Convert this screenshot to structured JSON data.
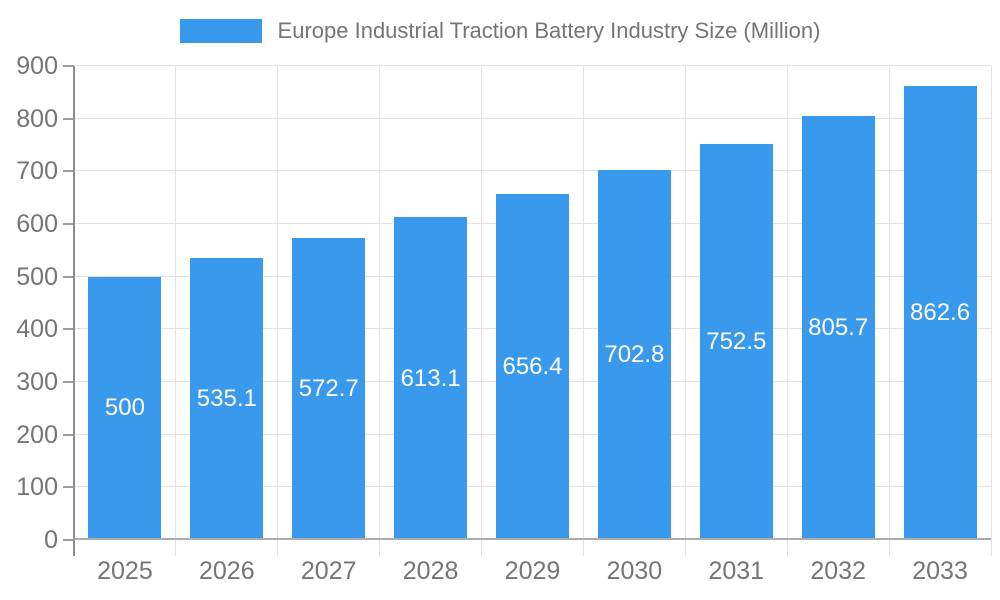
{
  "chart_data": {
    "type": "bar",
    "title": "Europe Industrial Traction Battery Industry Size (Million)",
    "legend": {
      "position": "top",
      "entries": [
        "Europe Industrial Traction Battery Industry Size (Million)"
      ]
    },
    "categories": [
      "2025",
      "2026",
      "2027",
      "2028",
      "2029",
      "2030",
      "2031",
      "2032",
      "2033"
    ],
    "values": [
      500,
      535.1,
      572.7,
      613.1,
      656.4,
      702.8,
      752.5,
      805.7,
      862.6
    ],
    "xlabel": "",
    "ylabel": "",
    "ylim": [
      0,
      900
    ],
    "ytick_interval": 100,
    "yticks": [
      0,
      100,
      200,
      300,
      400,
      500,
      600,
      700,
      800,
      900
    ],
    "grid": true,
    "value_label_position": "inside-center",
    "colors": {
      "bar": "#3999EC",
      "value_label": "#FFFFFF",
      "axis_line": "#8C8C8C",
      "baseline": "#ABABAB",
      "tick": "#9E9E9E",
      "gridline": "#E3E3E3",
      "tick_label": "#757575",
      "title": "#757575",
      "background": "#FFFFFF"
    }
  }
}
